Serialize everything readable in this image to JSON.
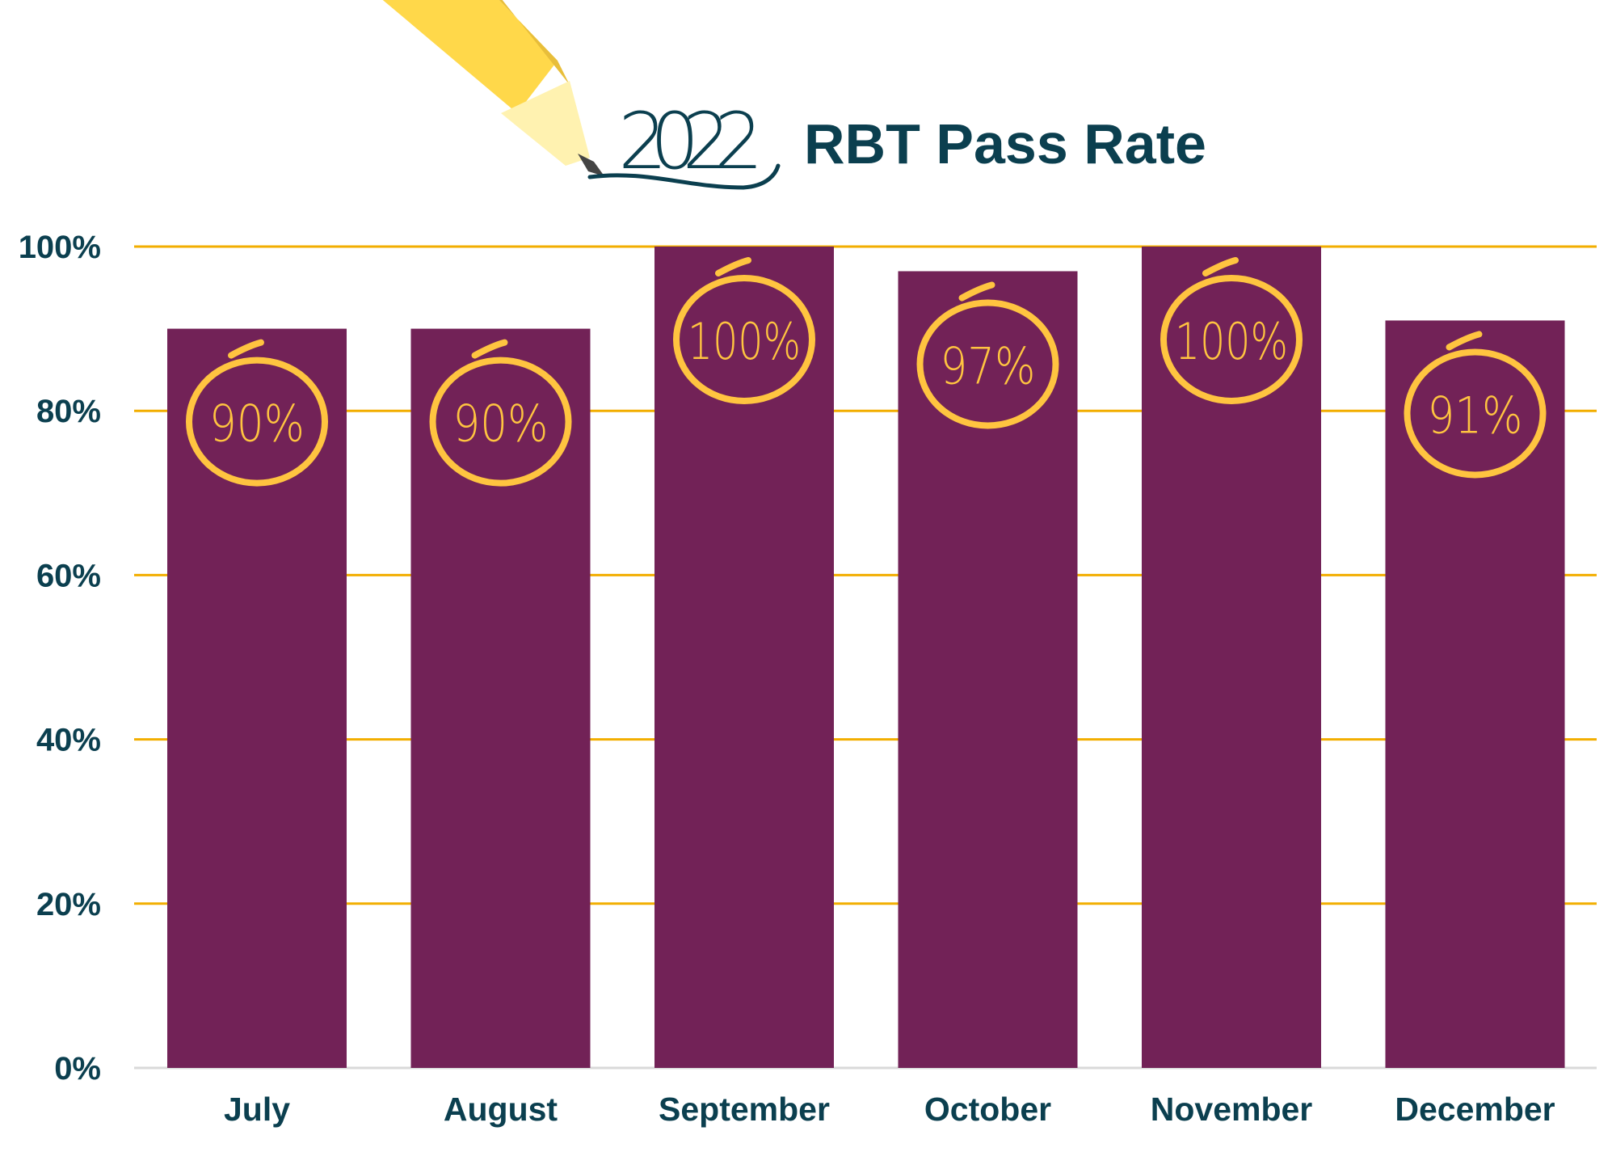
{
  "chart_data": {
    "type": "bar",
    "title": "RBT Pass Rate",
    "title_year": "2022",
    "categories": [
      "July",
      "August",
      "September",
      "October",
      "November",
      "December"
    ],
    "values": [
      90,
      90,
      100,
      97,
      100,
      91
    ],
    "data_labels": [
      "90%",
      "90%",
      "100%",
      "97%",
      "100%",
      "91%"
    ],
    "y_ticks": [
      "0%",
      "20%",
      "40%",
      "60%",
      "80%",
      "100%"
    ],
    "ylim": [
      0,
      100
    ],
    "xlabel": "",
    "ylabel": "",
    "grid": true,
    "legend": "none",
    "colors": {
      "bar": "#722257",
      "grid": "#F2AE00",
      "text": "#0B3F4F",
      "label_circle": "#FFC440",
      "pencil": "#FFD84A"
    }
  }
}
